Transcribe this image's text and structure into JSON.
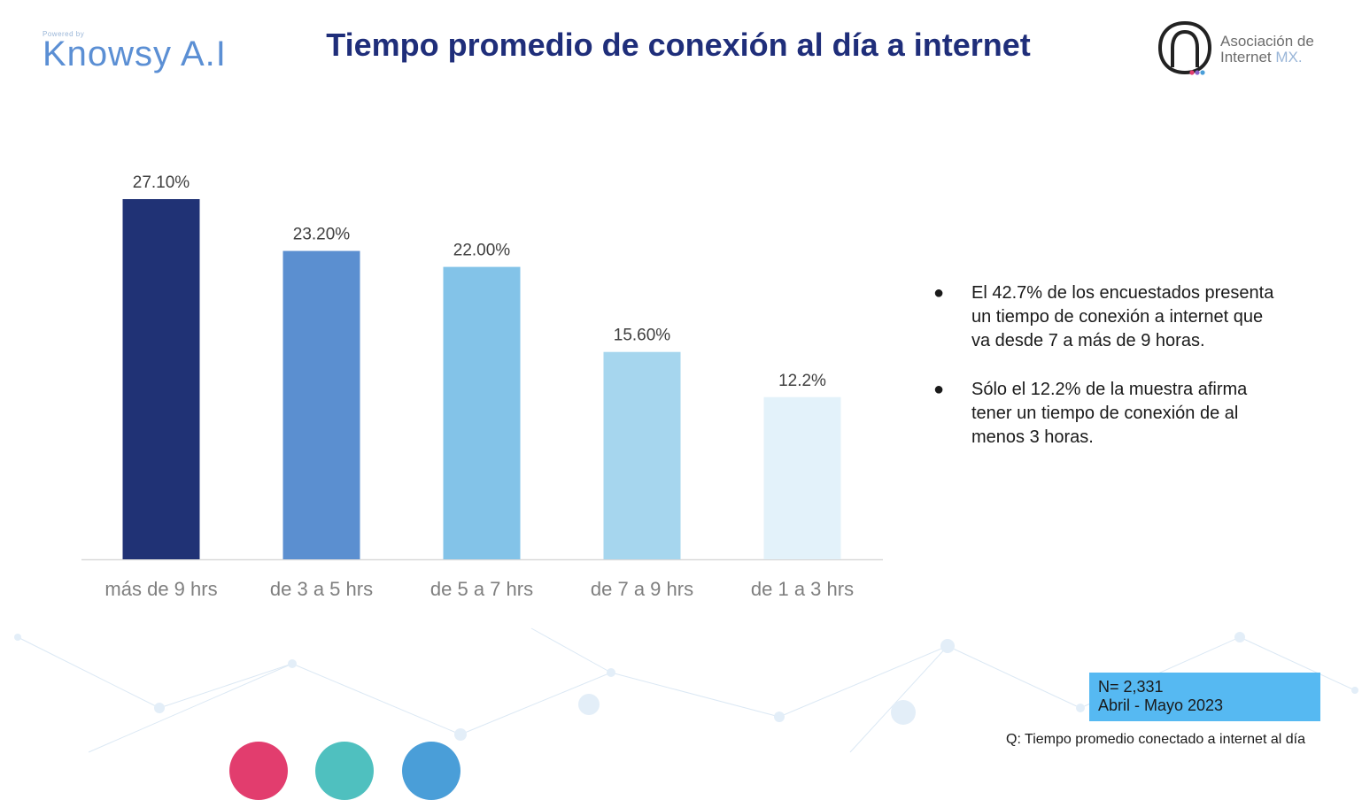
{
  "header": {
    "title": "Tiempo promedio de conexión al día a internet",
    "left_logo": {
      "powered": "Powered by",
      "brand": "Knowsy A.I"
    },
    "right_logo": {
      "line1": "Asociación de",
      "line2": "Internet",
      "suffix": "MX."
    }
  },
  "chart_data": {
    "type": "bar",
    "categories": [
      "más de 9 hrs",
      "de 3 a 5 hrs",
      "de 5 a 7 hrs",
      "de 7 a 9 hrs",
      "de 1 a 3 hrs"
    ],
    "values": [
      27.1,
      23.2,
      22.0,
      15.6,
      12.2
    ],
    "data_labels": [
      "27.10%",
      "23.20%",
      "22.00%",
      "15.60%",
      "12.2%"
    ],
    "colors": [
      "#203275",
      "#5b8fd0",
      "#83c3e8",
      "#a6d6ee",
      "#e3f2fa"
    ],
    "ylim": [
      0,
      27.1
    ],
    "title": "",
    "xlabel": "",
    "ylabel": "",
    "grid": false,
    "legend": "none"
  },
  "bullets": [
    "El 42.7% de los encuestados presenta un tiempo de conexión a internet que va desde 7 a más de 9 horas.",
    "Sólo el 12.2% de la muestra afirma tener un tiempo de conexión de al menos 3 horas."
  ],
  "sample": {
    "n": "N= 2,331",
    "period": "Abril - Mayo 2023"
  },
  "question": "Q: Tiempo promedio conectado a internet al día",
  "footer_circles": [
    "#e23d6e",
    "#4fc0bf",
    "#4a9ed8"
  ],
  "colors": {
    "title": "#1f2e7a",
    "box": "#56b9f2"
  }
}
